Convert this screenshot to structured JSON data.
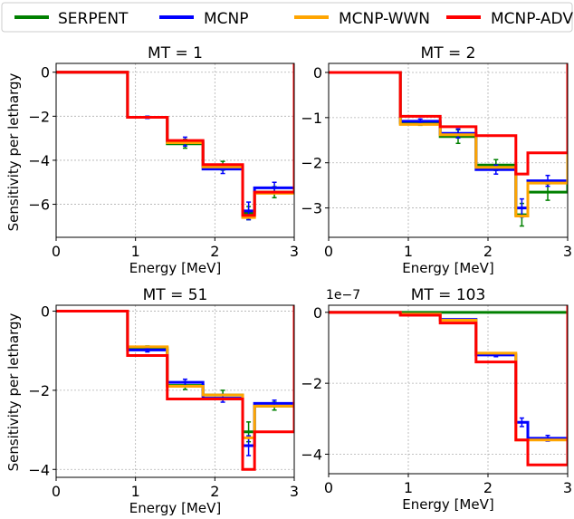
{
  "legend": {
    "items": [
      {
        "label": "SERPENT",
        "color": "#008000"
      },
      {
        "label": "MCNP",
        "color": "#0000ff"
      },
      {
        "label": "MCNP-WWN",
        "color": "#ffa500"
      },
      {
        "label": "MCNP-ADV",
        "color": "#ff0000"
      }
    ]
  },
  "chart_data": [
    {
      "type": "line",
      "title": "MT = 1",
      "xlabel": "Energy [MeV]",
      "ylabel": "Sensitivity per lethargy",
      "xlim": [
        0,
        3
      ],
      "ylim": [
        -7.5,
        0.4
      ],
      "xticks": [
        0,
        1,
        2,
        3
      ],
      "yticks": [
        0,
        -2,
        -4,
        -6
      ],
      "grid": true,
      "bin_edges": [
        0,
        0.9,
        1.4,
        1.85,
        2.35,
        2.5,
        3.0
      ],
      "series": [
        {
          "name": "SERPENT",
          "values": [
            0,
            -2.05,
            -3.25,
            -4.25,
            -6.4,
            -5.45
          ],
          "errors": [
            0,
            0.05,
            0.2,
            0.2,
            0.3,
            0.25
          ]
        },
        {
          "name": "MCNP",
          "values": [
            0,
            -2.05,
            -3.15,
            -4.4,
            -6.3,
            -5.25
          ],
          "errors": [
            0,
            0.05,
            0.2,
            0.2,
            0.4,
            0.25
          ]
        },
        {
          "name": "MCNP-WWN",
          "values": [
            0,
            -2.05,
            -3.2,
            -4.3,
            -6.6,
            -5.5
          ],
          "errors": [
            0,
            0,
            0,
            0,
            0,
            0
          ]
        },
        {
          "name": "MCNP-ADV",
          "values": [
            0,
            -2.05,
            -3.1,
            -4.2,
            -6.5,
            -5.45
          ],
          "errors": [
            0,
            0,
            0,
            0,
            0,
            0
          ]
        }
      ]
    },
    {
      "type": "line",
      "title": "MT = 2",
      "xlabel": "Energy [MeV]",
      "ylabel": "",
      "xlim": [
        0,
        3
      ],
      "ylim": [
        -3.65,
        0.2
      ],
      "xticks": [
        0,
        1,
        2,
        3
      ],
      "yticks": [
        0,
        -1,
        -2,
        -3
      ],
      "grid": true,
      "bin_edges": [
        0,
        0.9,
        1.4,
        1.85,
        2.35,
        2.5,
        3.0
      ],
      "series": [
        {
          "name": "SERPENT",
          "values": [
            0,
            -1.12,
            -1.42,
            -2.05,
            -3.15,
            -2.65
          ],
          "errors": [
            0,
            0.05,
            0.15,
            0.12,
            0.25,
            0.18
          ]
        },
        {
          "name": "MCNP",
          "values": [
            0,
            -1.08,
            -1.35,
            -2.15,
            -3.0,
            -2.4
          ],
          "errors": [
            0,
            0.05,
            0.1,
            0.1,
            0.2,
            0.12
          ]
        },
        {
          "name": "MCNP-WWN",
          "values": [
            0,
            -1.15,
            -1.38,
            -2.1,
            -3.18,
            -2.45
          ],
          "errors": [
            0,
            0,
            0,
            0,
            0,
            0
          ]
        },
        {
          "name": "MCNP-ADV",
          "values": [
            0,
            -0.97,
            -1.2,
            -1.4,
            -2.25,
            -1.78
          ],
          "errors": [
            0,
            0,
            0,
            0,
            0,
            0
          ]
        }
      ]
    },
    {
      "type": "line",
      "title": "MT = 51",
      "xlabel": "Energy [MeV]",
      "ylabel": "Sensitivity per lethargy",
      "xlim": [
        0,
        3
      ],
      "ylim": [
        -4.2,
        0.15
      ],
      "xticks": [
        0,
        1,
        2,
        3
      ],
      "yticks": [
        0,
        -2,
        -4
      ],
      "grid": true,
      "bin_edges": [
        0,
        0.9,
        1.4,
        1.85,
        2.35,
        2.5,
        3.0
      ],
      "series": [
        {
          "name": "SERPENT",
          "values": [
            0,
            -0.93,
            -1.88,
            -2.12,
            -3.05,
            -2.4
          ],
          "errors": [
            0,
            0.05,
            0.1,
            0.12,
            0.25,
            0.1
          ]
        },
        {
          "name": "MCNP",
          "values": [
            0,
            -0.98,
            -1.8,
            -2.2,
            -3.4,
            -2.33
          ],
          "errors": [
            0,
            0.05,
            0.08,
            0.1,
            0.25,
            0.08
          ]
        },
        {
          "name": "MCNP-WWN",
          "values": [
            0,
            -0.9,
            -1.9,
            -2.12,
            -3.2,
            -2.4
          ],
          "errors": [
            0,
            0,
            0,
            0,
            0,
            0
          ]
        },
        {
          "name": "MCNP-ADV",
          "values": [
            0,
            -1.12,
            -2.22,
            -2.22,
            -4.0,
            -3.05
          ],
          "errors": [
            0,
            0,
            0,
            0,
            0,
            0
          ]
        }
      ]
    },
    {
      "type": "line",
      "title": "MT = 103",
      "offset_label": "1e−7",
      "xlabel": "Energy [MeV]",
      "ylabel": "",
      "xlim": [
        0,
        3
      ],
      "ylim": [
        -4.55,
        0.2
      ],
      "xticks": [
        0,
        1,
        2,
        3
      ],
      "yticks": [
        0,
        -2,
        -4
      ],
      "grid": true,
      "bin_edges": [
        0,
        0.9,
        1.4,
        1.85,
        2.35,
        2.5,
        3.0
      ],
      "series": [
        {
          "name": "SERPENT",
          "values": [
            0,
            0,
            0,
            0,
            0,
            0
          ],
          "errors": [
            0,
            0,
            0,
            0,
            0,
            0
          ]
        },
        {
          "name": "MCNP",
          "values": [
            0,
            -0.05,
            -0.2,
            -1.2,
            -3.1,
            -3.55
          ],
          "errors": [
            0,
            0,
            0,
            0.05,
            0.12,
            0.08
          ]
        },
        {
          "name": "MCNP-WWN",
          "values": [
            0,
            -0.05,
            -0.22,
            -1.15,
            -3.6,
            -3.6
          ],
          "errors": [
            0,
            0,
            0,
            0,
            0,
            0
          ]
        },
        {
          "name": "MCNP-ADV",
          "values": [
            0,
            -0.08,
            -0.3,
            -1.4,
            -3.6,
            -4.3
          ],
          "errors": [
            0,
            0,
            0,
            0,
            0,
            0
          ]
        }
      ]
    }
  ]
}
